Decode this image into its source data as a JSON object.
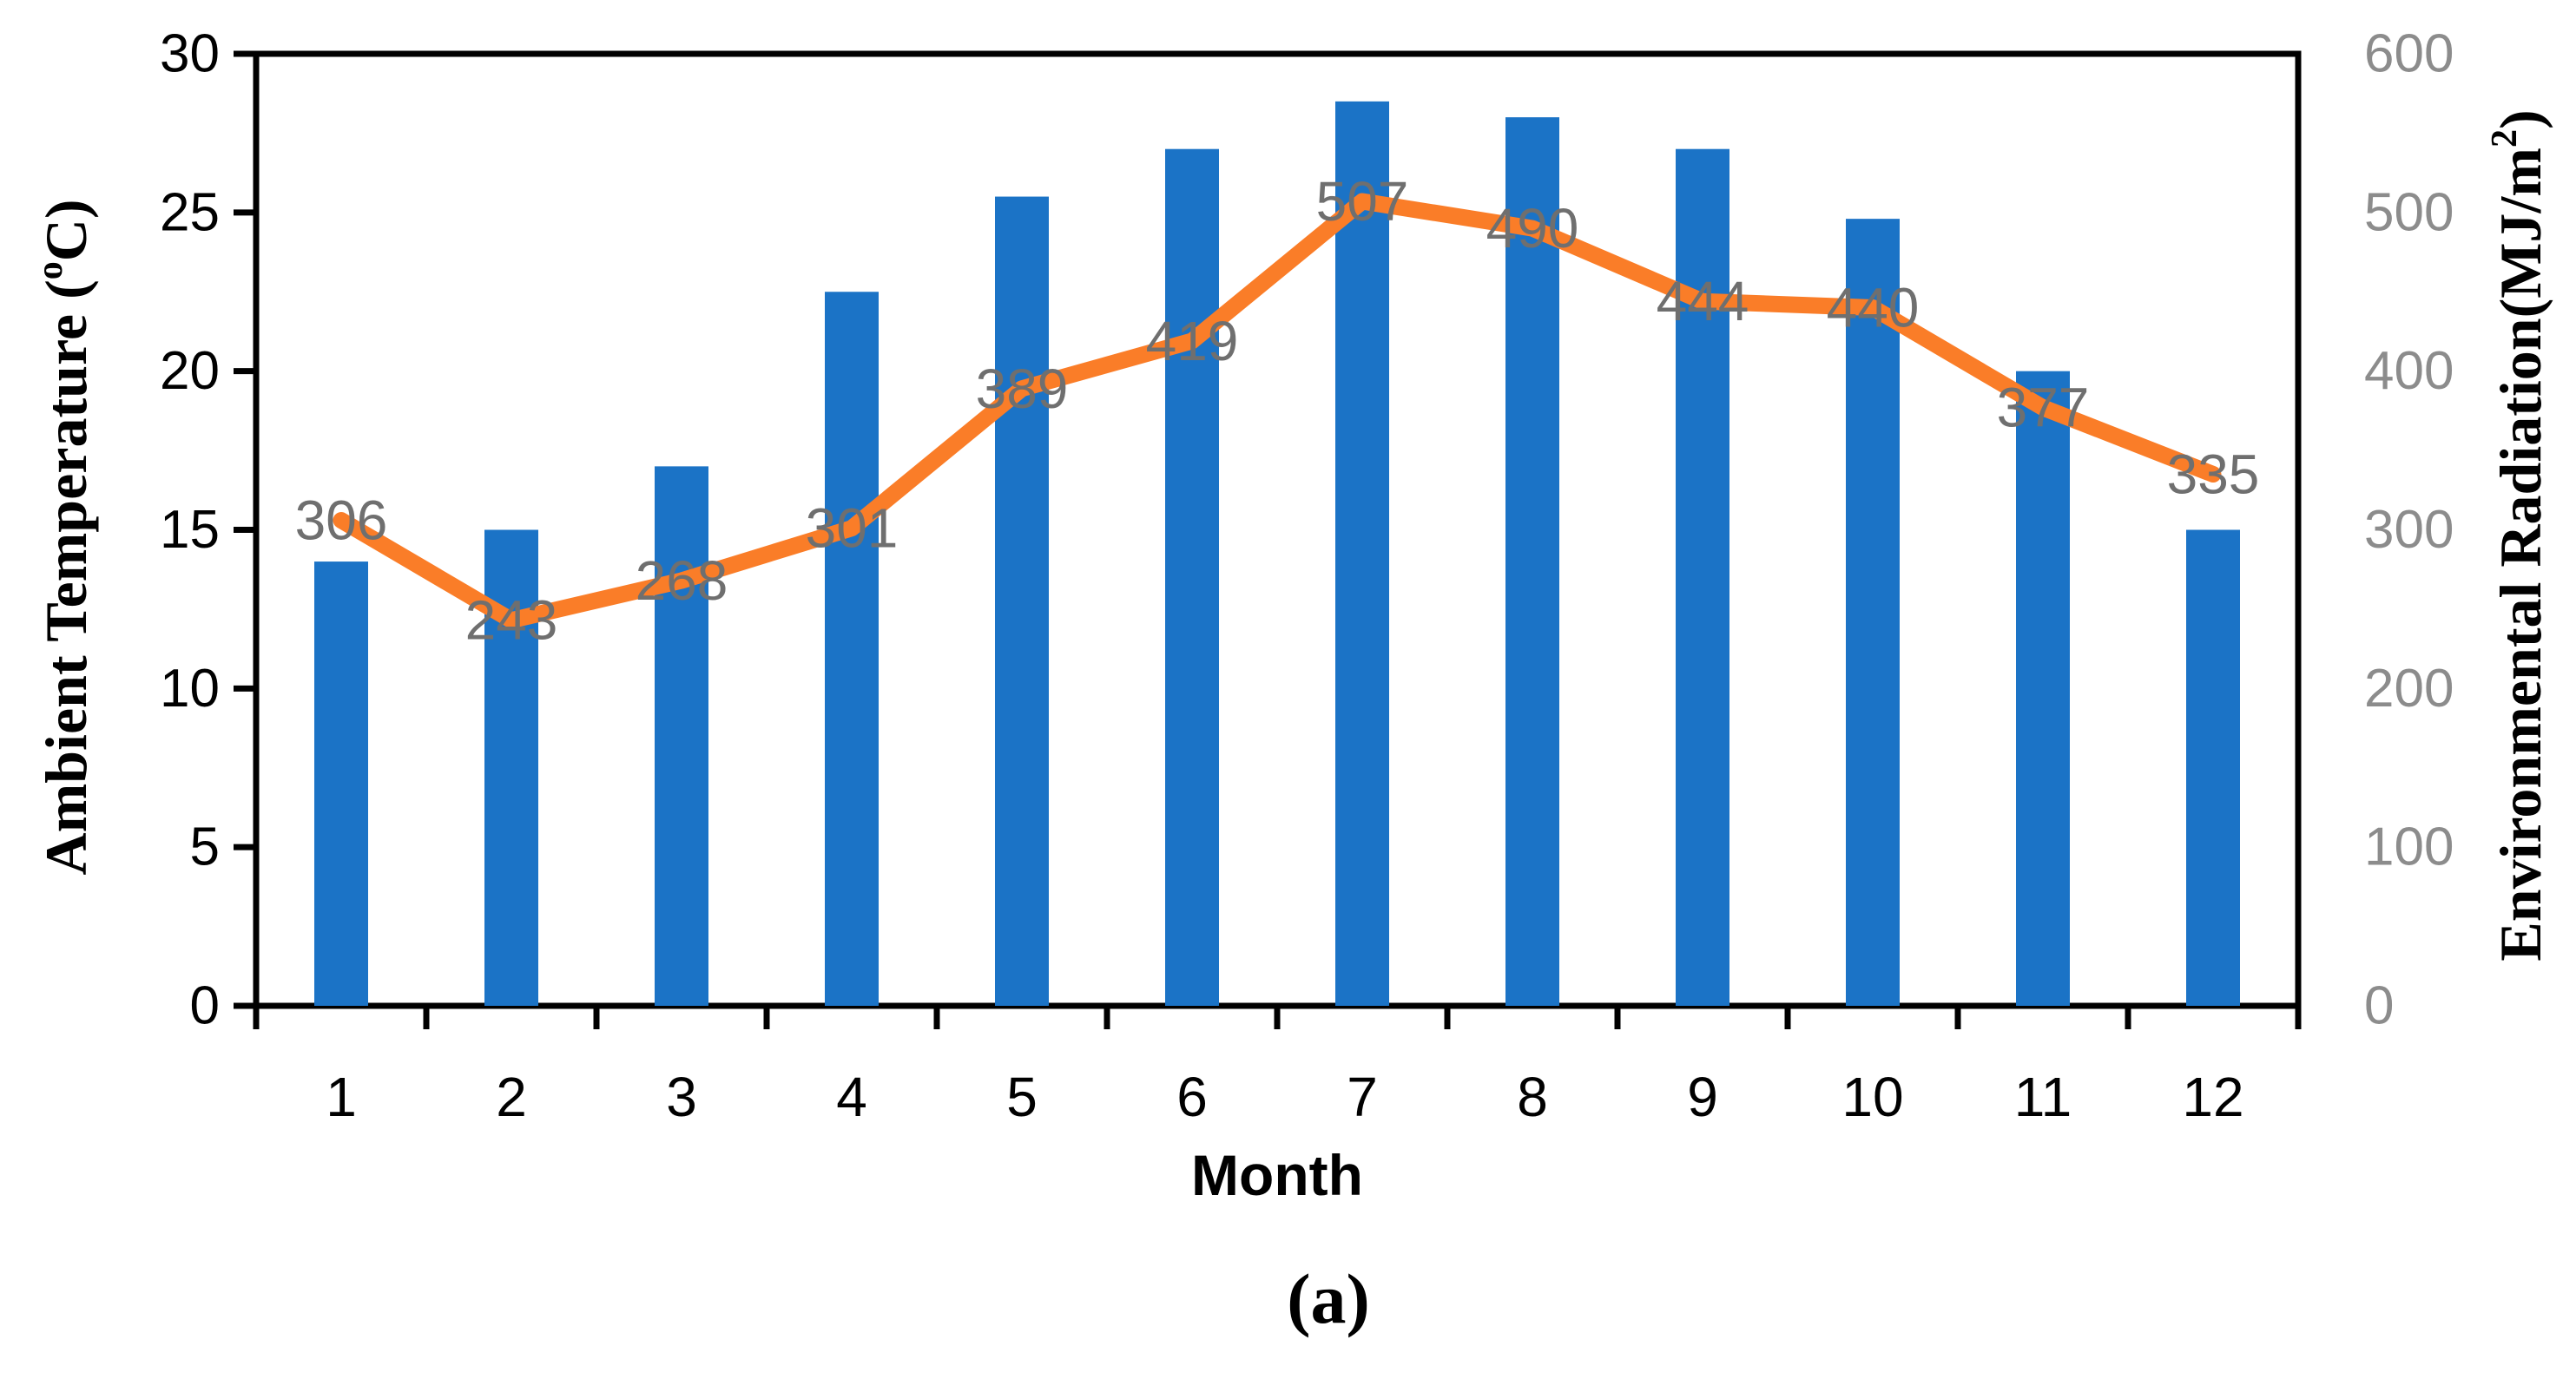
{
  "figure": {
    "x_axis_label": "Month",
    "panel_label": "(a)"
  },
  "chart_data": {
    "type": "bar",
    "subtype": "bar+line combo, dual axis",
    "categories": [
      "1",
      "2",
      "3",
      "4",
      "5",
      "6",
      "7",
      "8",
      "9",
      "10",
      "11",
      "12"
    ],
    "series": [
      {
        "name": "Ambient Temperature",
        "chart_type": "bar",
        "axis": "left",
        "color": "#1B73C6",
        "values": [
          14,
          15,
          17,
          22.5,
          25.5,
          27,
          28.5,
          28,
          27,
          24.8,
          20,
          15
        ]
      },
      {
        "name": "Environmental Radiation",
        "chart_type": "line",
        "axis": "right",
        "color": "#FA7D28",
        "values": [
          306,
          243,
          268,
          301,
          389,
          419,
          507,
          490,
          444,
          440,
          377,
          335
        ],
        "data_labels": [
          "306",
          "243",
          "268",
          "301",
          "389",
          "419",
          "507",
          "490",
          "444",
          "440",
          "377",
          "335"
        ]
      }
    ],
    "left_axis": {
      "title_prefix": "Ambient Temperature (",
      "title_sup": "o",
      "title_suffix": "C)",
      "tick_labels": [
        "0",
        "5",
        "10",
        "15",
        "20",
        "25",
        "30"
      ],
      "tick_values": [
        0,
        5,
        10,
        15,
        20,
        25,
        30
      ],
      "range": [
        0,
        30
      ],
      "tick_color": "#000000"
    },
    "right_axis": {
      "title_prefix": "Environmental Radiation(MJ/m",
      "title_sup": "2",
      "title_suffix": ")",
      "tick_labels": [
        "0",
        "100",
        "200",
        "300",
        "400",
        "500",
        "600"
      ],
      "tick_values": [
        0,
        100,
        200,
        300,
        400,
        500,
        600
      ],
      "range": [
        0,
        600
      ],
      "tick_color": "#8C8C8C"
    },
    "x_axis": {
      "label": "Month",
      "tick_labels": [
        "1",
        "2",
        "3",
        "4",
        "5",
        "6",
        "7",
        "8",
        "9",
        "10",
        "11",
        "12"
      ]
    },
    "panel_label": "(a)",
    "data_label_color": "#6F6F6F",
    "grid": "off",
    "legend": "none"
  }
}
